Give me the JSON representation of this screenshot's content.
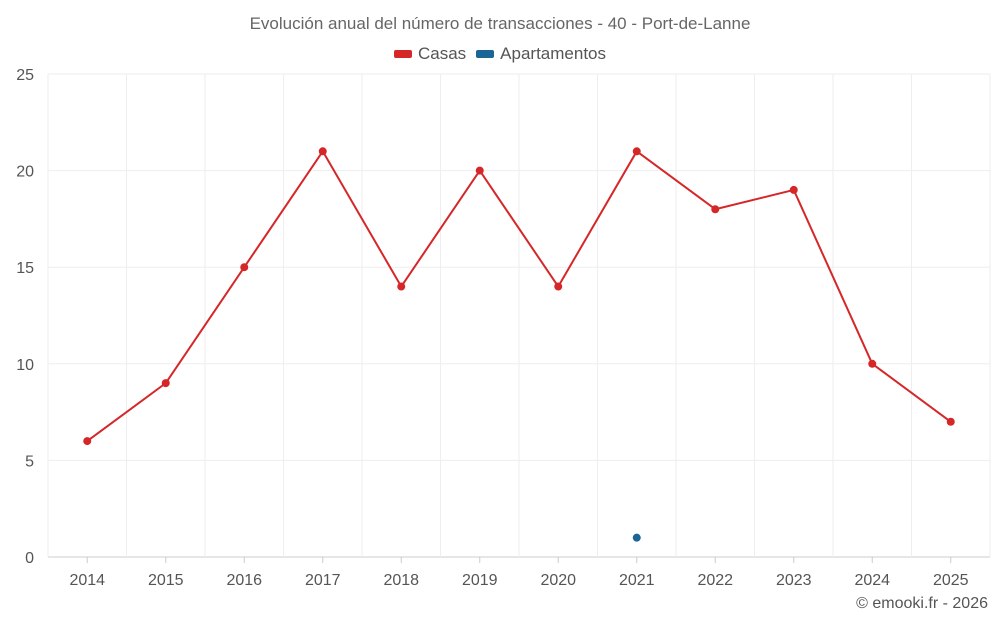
{
  "chart_data": {
    "type": "line",
    "title": "Evolución anual del número de transacciones - 40 - Port-de-Lanne",
    "categories": [
      "2014",
      "2015",
      "2016",
      "2017",
      "2018",
      "2019",
      "2020",
      "2021",
      "2022",
      "2023",
      "2024",
      "2025"
    ],
    "series": [
      {
        "name": "Casas",
        "color": "#d62728",
        "values": [
          6,
          9,
          15,
          21,
          14,
          20,
          14,
          21,
          18,
          19,
          10,
          7
        ]
      },
      {
        "name": "Apartamentos",
        "color": "#1a6496",
        "values": [
          null,
          null,
          null,
          null,
          null,
          null,
          null,
          1,
          null,
          null,
          null,
          null
        ]
      }
    ],
    "ylim": [
      0,
      25
    ],
    "yticks": [
      0,
      5,
      10,
      15,
      20,
      25
    ],
    "grid": true,
    "legend_position": "top-center"
  },
  "footer": {
    "credit": "© emooki.fr - 2026"
  }
}
